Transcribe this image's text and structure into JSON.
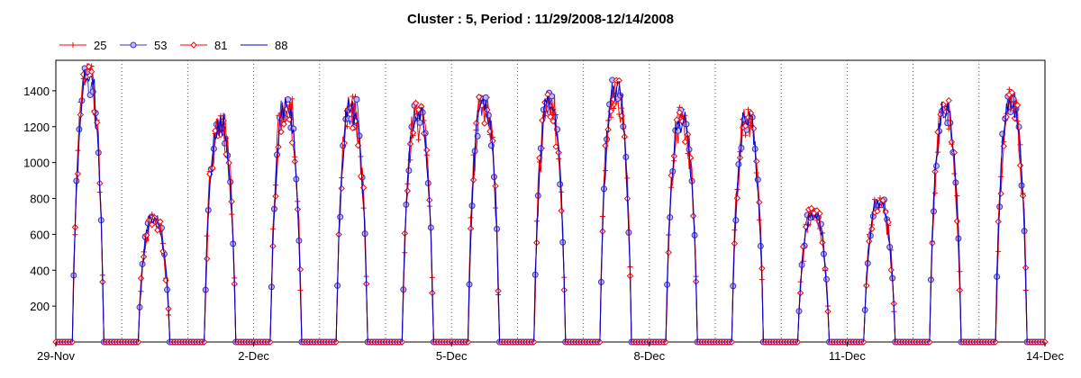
{
  "chart_data": {
    "type": "line",
    "title": "Cluster : 5, Period : 11/29/2008-12/14/2008",
    "xlabel": "",
    "ylabel": "",
    "x_start": "2008-11-29",
    "x_end": "2008-12-14",
    "x_tick_labels": [
      "29-Nov",
      "2-Dec",
      "5-Dec",
      "8-Dec",
      "11-Dec",
      "14-Dec"
    ],
    "y_tick_labels": [
      "200",
      "400",
      "600",
      "800",
      "1000",
      "1200",
      "1400"
    ],
    "y_ticks": [
      200,
      400,
      600,
      800,
      1000,
      1200,
      1400
    ],
    "ylim": [
      0,
      1570
    ],
    "grid": "dotted vertical lines at day boundaries",
    "legend_position": "top-left",
    "daily_peaks": [
      {
        "date": "2008-11-29",
        "peak": 1560
      },
      {
        "date": "2008-11-30",
        "peak": 720
      },
      {
        "date": "2008-12-01",
        "peak": 1280
      },
      {
        "date": "2008-12-02",
        "peak": 1370
      },
      {
        "date": "2008-12-03",
        "peak": 1370
      },
      {
        "date": "2008-12-04",
        "peak": 1340
      },
      {
        "date": "2008-12-05",
        "peak": 1380
      },
      {
        "date": "2008-12-06",
        "peak": 1390
      },
      {
        "date": "2008-12-07",
        "peak": 1460
      },
      {
        "date": "2008-12-08",
        "peak": 1310
      },
      {
        "date": "2008-12-09",
        "peak": 1300
      },
      {
        "date": "2008-12-10",
        "peak": 750
      },
      {
        "date": "2008-12-11",
        "peak": 810
      },
      {
        "date": "2008-12-12",
        "peak": 1350
      },
      {
        "date": "2008-12-13",
        "peak": 1410
      }
    ],
    "series": [
      {
        "name": "25",
        "color": "#ff0000",
        "marker": "plus"
      },
      {
        "name": "53",
        "color": "#3333cc",
        "marker": "circle",
        "marker_fill": "#c8b4f0"
      },
      {
        "name": "81",
        "color": "#ff0000",
        "marker": "diamond"
      },
      {
        "name": "88",
        "color": "#0000cc",
        "marker": "none"
      }
    ]
  }
}
